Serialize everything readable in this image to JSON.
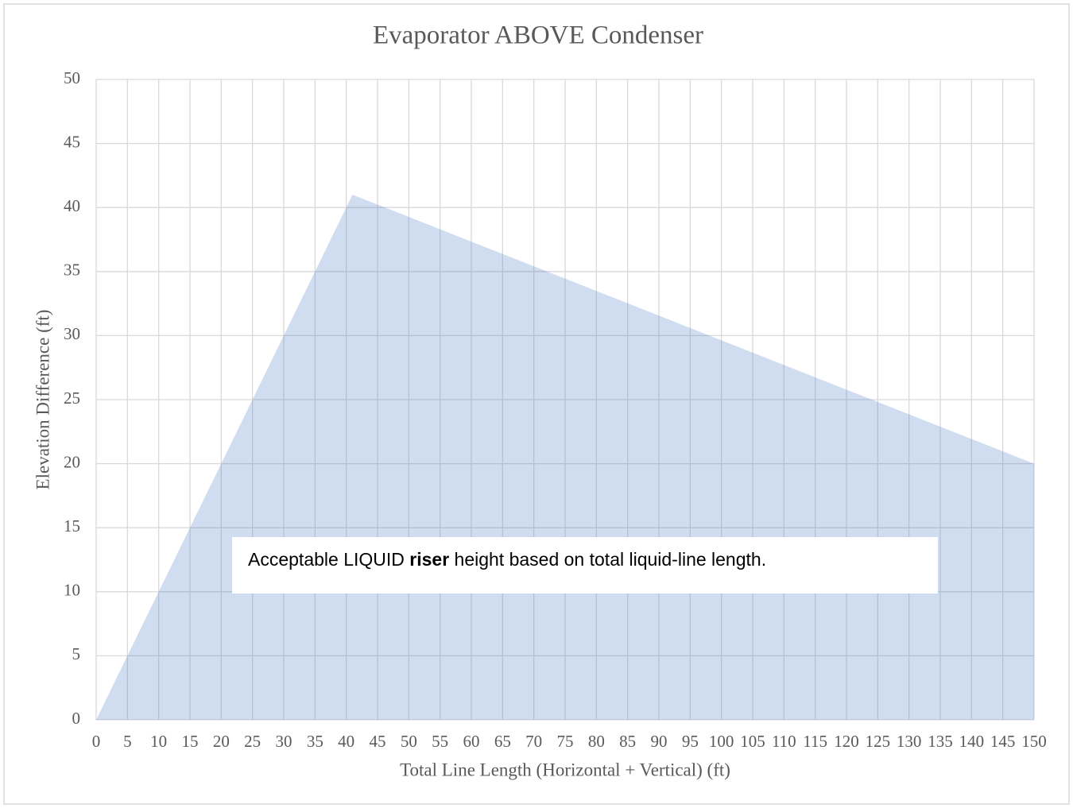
{
  "chart_data": {
    "type": "area",
    "title": "Evaporator ABOVE Condenser",
    "x_label": "Total Line Length (Horizontal + Vertical) (ft)",
    "y_label": "Elevation Difference (ft)",
    "x": [
      0,
      41,
      150
    ],
    "values": [
      0,
      41,
      20
    ],
    "color": "#4472c4",
    "xlim": [
      0,
      150
    ],
    "ylim": [
      0,
      50
    ],
    "xticks": [
      0,
      5,
      10,
      15,
      20,
      25,
      30,
      35,
      40,
      45,
      50,
      55,
      60,
      65,
      70,
      75,
      80,
      85,
      90,
      95,
      100,
      105,
      110,
      115,
      120,
      125,
      130,
      135,
      140,
      145,
      150
    ],
    "yticks": [
      0,
      5,
      10,
      15,
      20,
      25,
      30,
      35,
      40,
      45,
      50
    ],
    "grid": true,
    "annotation": [
      "Acceptable LIQUID ",
      "riser",
      " height based on total liquid-line length."
    ]
  }
}
